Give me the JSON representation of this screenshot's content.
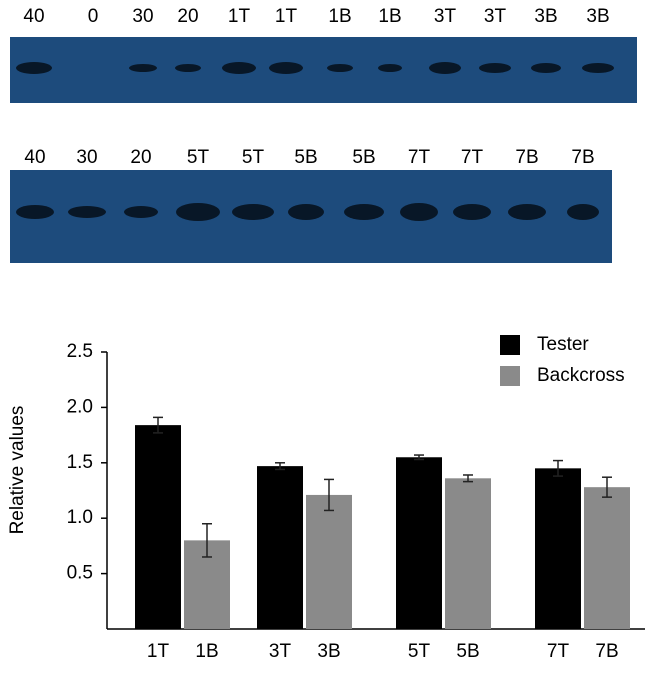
{
  "blots": [
    {
      "lanes": [
        "40",
        "0",
        "30",
        "20",
        "1T",
        "1T",
        "1B",
        "1B",
        "3T",
        "3T",
        "3B",
        "3B"
      ]
    },
    {
      "lanes": [
        "40",
        "30",
        "20",
        "5T",
        "5T",
        "5B",
        "5B",
        "7T",
        "7T",
        "7B",
        "7B"
      ]
    }
  ],
  "chart_data": {
    "type": "bar",
    "y_label": "Relative values",
    "categories": [
      "1T",
      "1B",
      "3T",
      "3B",
      "5T",
      "5B",
      "7T",
      "7B"
    ],
    "series": [
      {
        "name": "Tester",
        "color": "#000000",
        "values": [
          1.84,
          null,
          1.47,
          null,
          1.55,
          null,
          1.45,
          null
        ],
        "errors": [
          0.07,
          null,
          0.03,
          null,
          0.02,
          null,
          0.07,
          null
        ]
      },
      {
        "name": "Backcross",
        "color": "#8a8a8a",
        "values": [
          null,
          0.8,
          null,
          1.21,
          null,
          1.36,
          null,
          1.28
        ],
        "errors": [
          null,
          0.15,
          null,
          0.14,
          null,
          0.03,
          null,
          0.09
        ]
      }
    ],
    "ylim": [
      0,
      2.5
    ],
    "yticks": [
      0.5,
      {
        "value": 1.0,
        "label": "1.0"
      },
      1.5,
      {
        "value": 2.0,
        "label": "2.0"
      },
      2.5
    ]
  }
}
